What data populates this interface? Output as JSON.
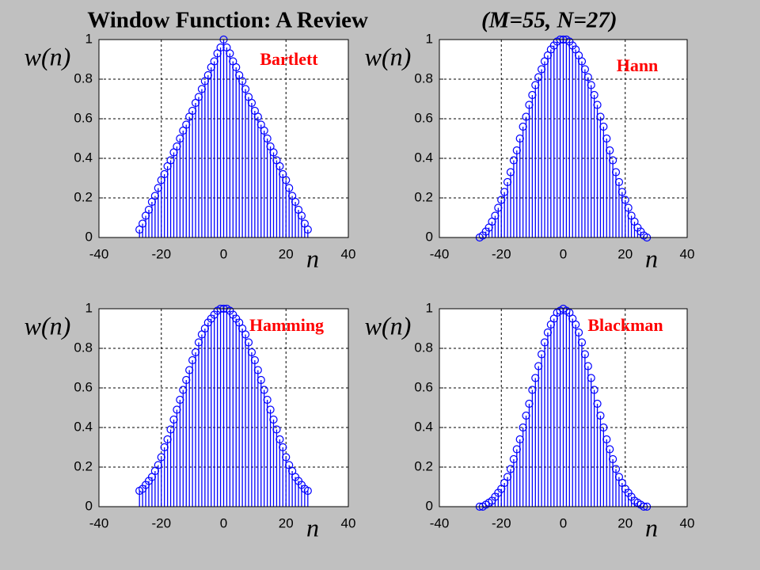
{
  "title": "Window Function: A Review",
  "subtitle": "(M=55, N=27)",
  "chart_data": [
    {
      "type": "stem",
      "title": "Bartlett",
      "xlabel": "n",
      "ylabel": "w(n)",
      "color": "#0000ff",
      "grid": true,
      "xlim": [
        -40,
        40
      ],
      "ylim": [
        0,
        1
      ],
      "xticks": [
        -40,
        -20,
        0,
        20,
        40
      ],
      "yticks": [
        0,
        0.2,
        0.4,
        0.6,
        0.8,
        1
      ],
      "x": [
        -27,
        -26,
        -25,
        -24,
        -23,
        -22,
        -21,
        -20,
        -19,
        -18,
        -17,
        -16,
        -15,
        -14,
        -13,
        -12,
        -11,
        -10,
        -9,
        -8,
        -7,
        -6,
        -5,
        -4,
        -3,
        -2,
        -1,
        0,
        1,
        2,
        3,
        4,
        5,
        6,
        7,
        8,
        9,
        10,
        11,
        12,
        13,
        14,
        15,
        16,
        17,
        18,
        19,
        20,
        21,
        22,
        23,
        24,
        25,
        26,
        27
      ],
      "values": [
        0.04,
        0.07,
        0.11,
        0.14,
        0.18,
        0.21,
        0.25,
        0.29,
        0.32,
        0.36,
        0.39,
        0.43,
        0.46,
        0.5,
        0.54,
        0.57,
        0.61,
        0.64,
        0.68,
        0.71,
        0.75,
        0.79,
        0.82,
        0.86,
        0.89,
        0.93,
        0.96,
        1,
        0.96,
        0.93,
        0.89,
        0.86,
        0.82,
        0.79,
        0.75,
        0.71,
        0.68,
        0.64,
        0.61,
        0.57,
        0.54,
        0.5,
        0.46,
        0.43,
        0.39,
        0.36,
        0.32,
        0.29,
        0.25,
        0.21,
        0.18,
        0.14,
        0.11,
        0.07,
        0.04
      ]
    },
    {
      "type": "stem",
      "title": "Hann",
      "xlabel": "n",
      "ylabel": "w(n)",
      "color": "#0000ff",
      "grid": true,
      "xlim": [
        -40,
        40
      ],
      "ylim": [
        0,
        1
      ],
      "xticks": [
        -40,
        -20,
        0,
        20,
        40
      ],
      "yticks": [
        0,
        0.2,
        0.4,
        0.6,
        0.8,
        1
      ],
      "x": [
        -27,
        -26,
        -25,
        -24,
        -23,
        -22,
        -21,
        -20,
        -19,
        -18,
        -17,
        -16,
        -15,
        -14,
        -13,
        -12,
        -11,
        -10,
        -9,
        -8,
        -7,
        -6,
        -5,
        -4,
        -3,
        -2,
        -1,
        0,
        1,
        2,
        3,
        4,
        5,
        6,
        7,
        8,
        9,
        10,
        11,
        12,
        13,
        14,
        15,
        16,
        17,
        18,
        19,
        20,
        21,
        22,
        23,
        24,
        25,
        26,
        27
      ],
      "values": [
        0,
        0.01,
        0.03,
        0.05,
        0.08,
        0.11,
        0.15,
        0.19,
        0.23,
        0.28,
        0.33,
        0.39,
        0.44,
        0.5,
        0.56,
        0.61,
        0.67,
        0.72,
        0.77,
        0.81,
        0.85,
        0.89,
        0.92,
        0.95,
        0.97,
        0.99,
        1,
        1,
        1,
        0.99,
        0.97,
        0.95,
        0.92,
        0.89,
        0.85,
        0.81,
        0.77,
        0.72,
        0.67,
        0.61,
        0.56,
        0.5,
        0.44,
        0.39,
        0.33,
        0.28,
        0.23,
        0.19,
        0.15,
        0.11,
        0.08,
        0.05,
        0.03,
        0.01,
        0
      ]
    },
    {
      "type": "stem",
      "title": "Hamming",
      "xlabel": "n",
      "ylabel": "w(n)",
      "color": "#0000ff",
      "grid": true,
      "xlim": [
        -40,
        40
      ],
      "ylim": [
        0,
        1
      ],
      "xticks": [
        -40,
        -20,
        0,
        20,
        40
      ],
      "yticks": [
        0,
        0.2,
        0.4,
        0.6,
        0.8,
        1
      ],
      "x": [
        -27,
        -26,
        -25,
        -24,
        -23,
        -22,
        -21,
        -20,
        -19,
        -18,
        -17,
        -16,
        -15,
        -14,
        -13,
        -12,
        -11,
        -10,
        -9,
        -8,
        -7,
        -6,
        -5,
        -4,
        -3,
        -2,
        -1,
        0,
        1,
        2,
        3,
        4,
        5,
        6,
        7,
        8,
        9,
        10,
        11,
        12,
        13,
        14,
        15,
        16,
        17,
        18,
        19,
        20,
        21,
        22,
        23,
        24,
        25,
        26,
        27
      ],
      "values": [
        0.08,
        0.09,
        0.11,
        0.13,
        0.15,
        0.18,
        0.21,
        0.25,
        0.3,
        0.34,
        0.39,
        0.44,
        0.49,
        0.54,
        0.59,
        0.64,
        0.69,
        0.74,
        0.78,
        0.83,
        0.87,
        0.9,
        0.93,
        0.95,
        0.97,
        0.99,
        1,
        1,
        1,
        0.99,
        0.97,
        0.95,
        0.93,
        0.9,
        0.87,
        0.83,
        0.78,
        0.74,
        0.69,
        0.64,
        0.59,
        0.54,
        0.49,
        0.44,
        0.39,
        0.34,
        0.3,
        0.25,
        0.21,
        0.18,
        0.15,
        0.13,
        0.11,
        0.09,
        0.08
      ]
    },
    {
      "type": "stem",
      "title": "Blackman",
      "xlabel": "n",
      "ylabel": "w(n)",
      "color": "#0000ff",
      "grid": true,
      "xlim": [
        -40,
        40
      ],
      "ylim": [
        0,
        1
      ],
      "xticks": [
        -40,
        -20,
        0,
        20,
        40
      ],
      "yticks": [
        0,
        0.2,
        0.4,
        0.6,
        0.8,
        1
      ],
      "x": [
        -27,
        -26,
        -25,
        -24,
        -23,
        -22,
        -21,
        -20,
        -19,
        -18,
        -17,
        -16,
        -15,
        -14,
        -13,
        -12,
        -11,
        -10,
        -9,
        -8,
        -7,
        -6,
        -5,
        -4,
        -3,
        -2,
        -1,
        0,
        1,
        2,
        3,
        4,
        5,
        6,
        7,
        8,
        9,
        10,
        11,
        12,
        13,
        14,
        15,
        16,
        17,
        18,
        19,
        20,
        21,
        22,
        23,
        24,
        25,
        26,
        27
      ],
      "values": [
        0,
        0,
        0.01,
        0.02,
        0.03,
        0.05,
        0.07,
        0.09,
        0.12,
        0.15,
        0.19,
        0.24,
        0.29,
        0.34,
        0.4,
        0.46,
        0.52,
        0.59,
        0.65,
        0.71,
        0.77,
        0.83,
        0.88,
        0.92,
        0.95,
        0.98,
        0.99,
        1,
        0.99,
        0.98,
        0.95,
        0.92,
        0.88,
        0.83,
        0.77,
        0.71,
        0.65,
        0.59,
        0.52,
        0.46,
        0.4,
        0.34,
        0.29,
        0.24,
        0.19,
        0.15,
        0.12,
        0.09,
        0.07,
        0.05,
        0.03,
        0.02,
        0.01,
        0,
        0
      ]
    }
  ]
}
